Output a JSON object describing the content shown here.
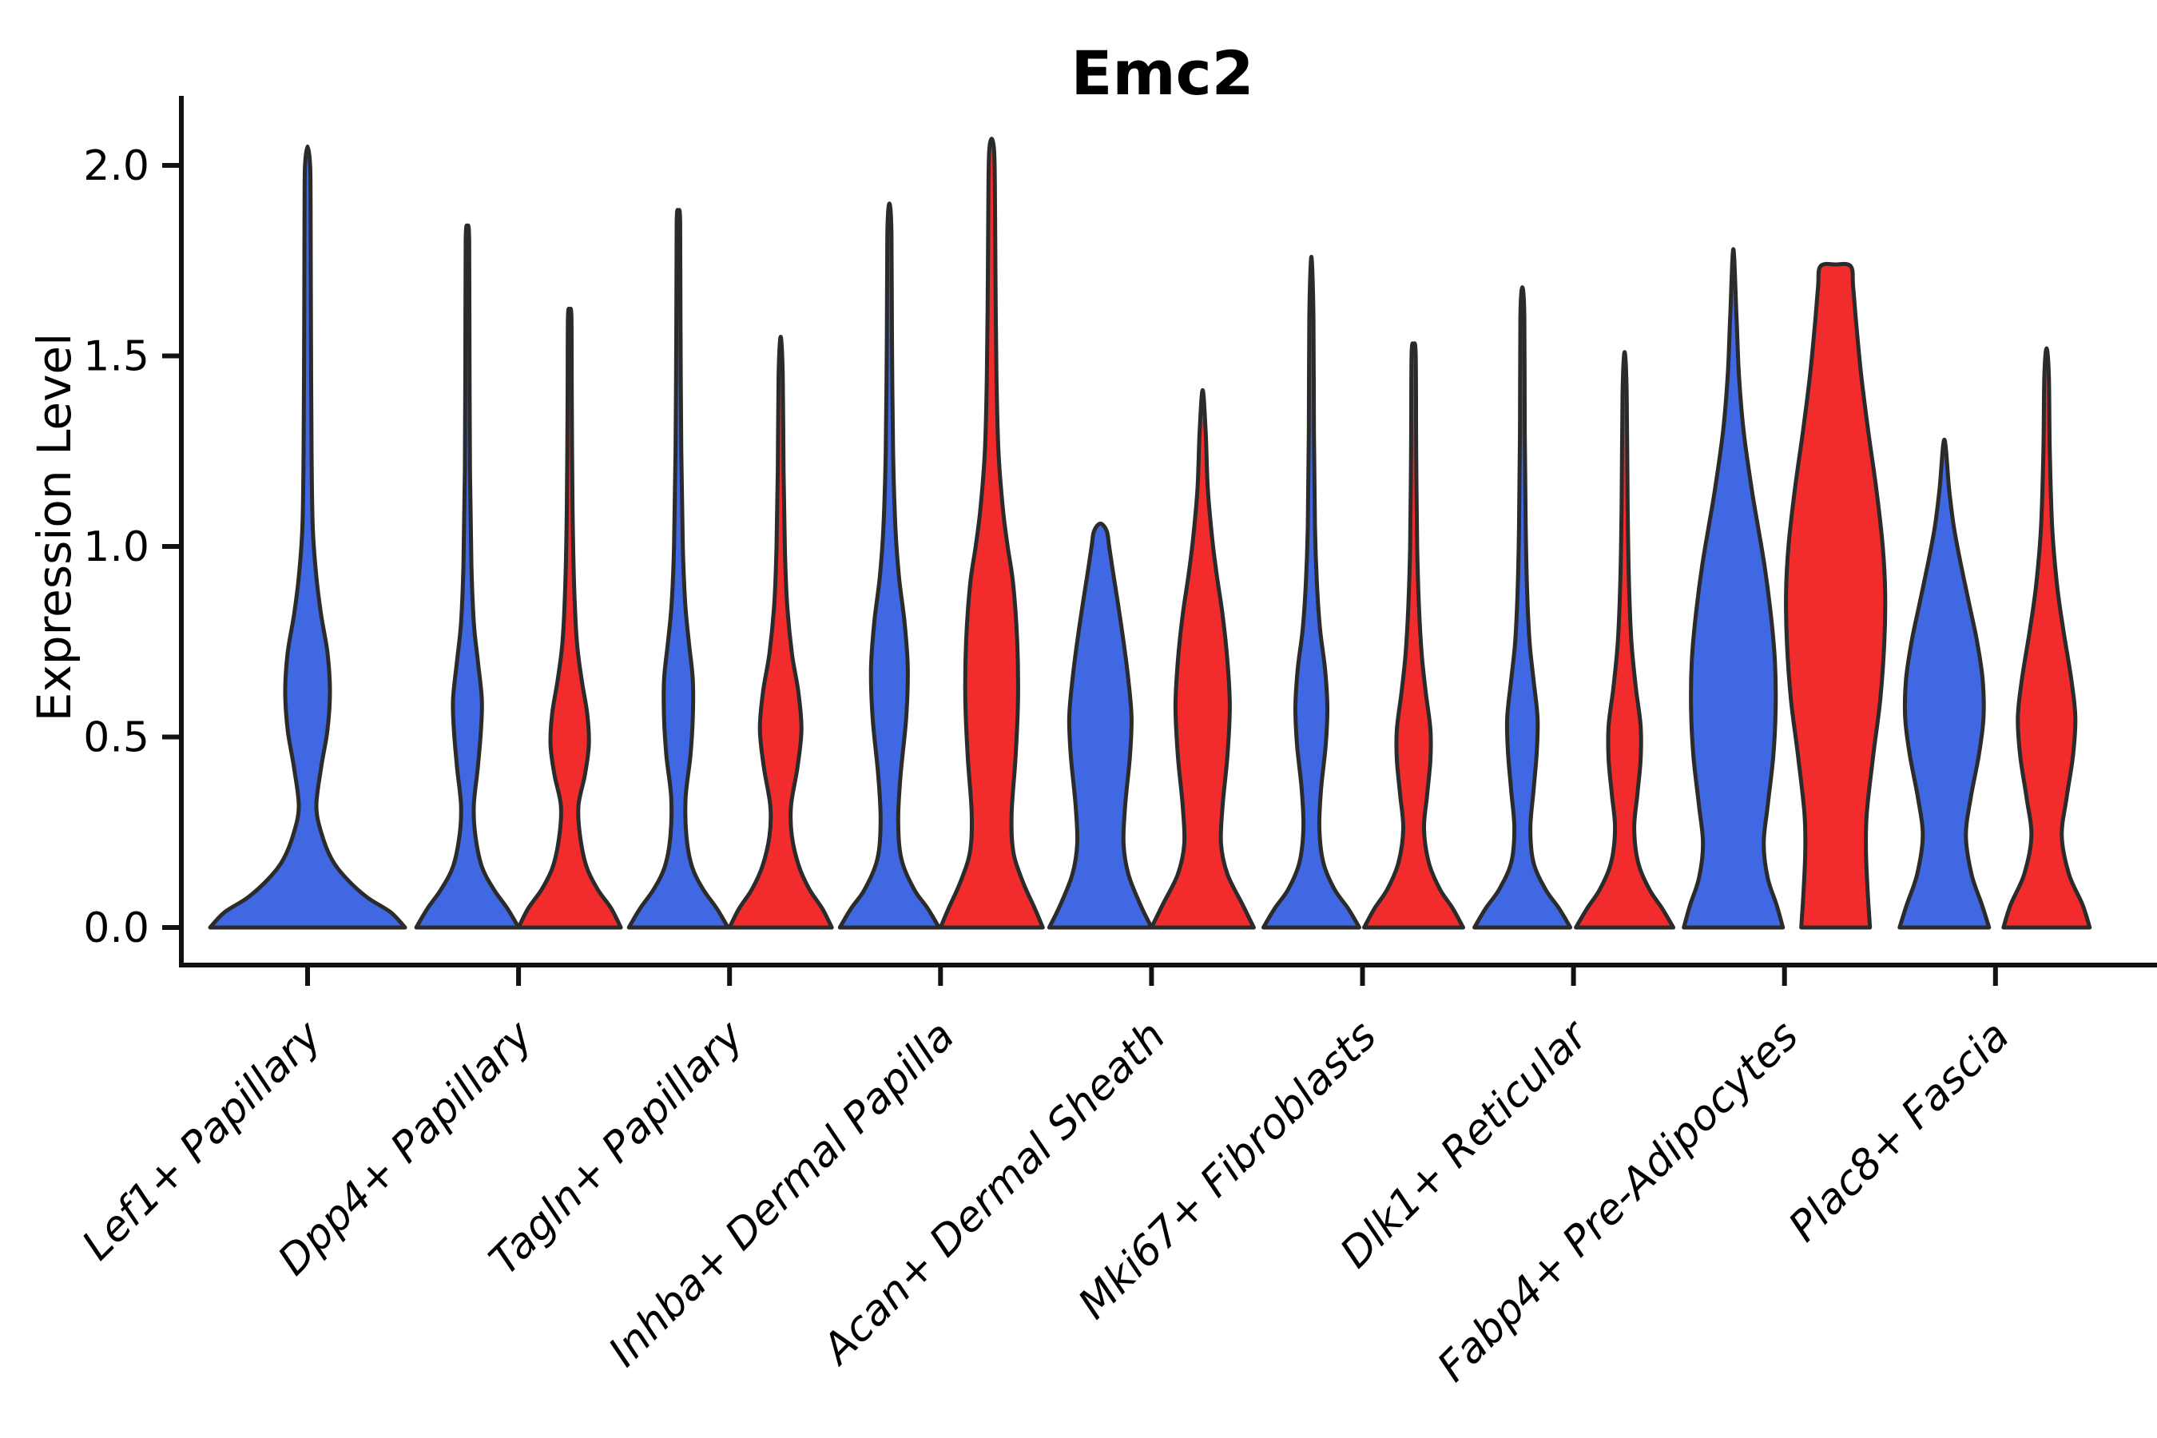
{
  "figure": {
    "title": "Emc2",
    "ylabel": "Expression Level"
  },
  "chart_data": {
    "type": "violin",
    "title": "Emc2",
    "xlabel": "",
    "ylabel": "Expression Level",
    "ylim": [
      0.0,
      2.15
    ],
    "yticks": [
      "0.0",
      "0.5",
      "1.0",
      "1.5",
      "2.0"
    ],
    "ytick_values": [
      0.0,
      0.5,
      1.0,
      1.5,
      2.0
    ],
    "grid": false,
    "legend": "none",
    "xtick_rotation": 45,
    "colors": {
      "blue": "#3F68E2",
      "red": "#F22C2C",
      "outline": "#2B2B2B",
      "axis": "#111111"
    },
    "categories": [
      "Lef1+ Papillary",
      "Dpp4+ Papillary",
      "Tagln+ Papillary",
      "Inhba+ Dermal Papilla",
      "Acan+ Dermal Sheath",
      "Mki67+ Fibroblasts",
      "Dlk1+ Reticular",
      "Fabp4+ Pre-Adipocytes",
      "Plac8+ Fascia"
    ],
    "violins": [
      {
        "category": "Lef1+ Papillary",
        "ci": 0,
        "color": "blue",
        "span": "full",
        "peak": 2.05,
        "profile": [
          [
            0,
            122
          ],
          [
            0.04,
            104
          ],
          [
            0.08,
            74
          ],
          [
            0.13,
            48
          ],
          [
            0.18,
            30
          ],
          [
            0.25,
            17
          ],
          [
            0.32,
            11
          ],
          [
            0.42,
            17
          ],
          [
            0.52,
            25
          ],
          [
            0.62,
            28
          ],
          [
            0.72,
            25
          ],
          [
            0.82,
            17
          ],
          [
            0.92,
            11
          ],
          [
            1.05,
            6.5
          ],
          [
            1.25,
            5
          ],
          [
            1.6,
            4.2
          ],
          [
            1.9,
            3.8
          ],
          [
            2.0,
            3.2
          ],
          [
            2.05,
            0
          ]
        ]
      },
      {
        "category": "Dpp4+ Papillary",
        "ci": 1,
        "color": "blue",
        "span": "half",
        "peak": 1.84,
        "profile": [
          [
            0,
            64
          ],
          [
            0.05,
            50
          ],
          [
            0.1,
            33
          ],
          [
            0.16,
            18
          ],
          [
            0.24,
            10
          ],
          [
            0.32,
            8
          ],
          [
            0.42,
            13
          ],
          [
            0.52,
            17
          ],
          [
            0.6,
            18
          ],
          [
            0.7,
            13
          ],
          [
            0.8,
            8
          ],
          [
            0.95,
            5
          ],
          [
            1.2,
            3.2
          ],
          [
            1.5,
            2.6
          ],
          [
            1.8,
            2.2
          ],
          [
            1.84,
            0
          ]
        ]
      },
      {
        "category": "Dpp4+ Papillary",
        "ci": 1,
        "color": "red",
        "span": "half",
        "peak": 1.62,
        "profile": [
          [
            0,
            64
          ],
          [
            0.05,
            52
          ],
          [
            0.1,
            35
          ],
          [
            0.16,
            21
          ],
          [
            0.24,
            13
          ],
          [
            0.32,
            11
          ],
          [
            0.4,
            19
          ],
          [
            0.48,
            24
          ],
          [
            0.56,
            22
          ],
          [
            0.65,
            15
          ],
          [
            0.75,
            9
          ],
          [
            0.9,
            5.5
          ],
          [
            1.1,
            3.6
          ],
          [
            1.4,
            2.6
          ],
          [
            1.6,
            2.2
          ],
          [
            1.62,
            0
          ]
        ]
      },
      {
        "category": "Tagln+ Papillary",
        "ci": 2,
        "color": "blue",
        "span": "half",
        "peak": 1.88,
        "profile": [
          [
            0,
            62
          ],
          [
            0.05,
            48
          ],
          [
            0.1,
            31
          ],
          [
            0.16,
            17
          ],
          [
            0.24,
            10
          ],
          [
            0.34,
            9
          ],
          [
            0.45,
            15
          ],
          [
            0.55,
            18
          ],
          [
            0.65,
            18
          ],
          [
            0.75,
            13
          ],
          [
            0.85,
            8.5
          ],
          [
            1.0,
            5.5
          ],
          [
            1.25,
            3.6
          ],
          [
            1.6,
            2.6
          ],
          [
            1.85,
            2.2
          ],
          [
            1.88,
            0
          ]
        ]
      },
      {
        "category": "Tagln+ Papillary",
        "ci": 2,
        "color": "red",
        "span": "half",
        "peak": 1.55,
        "profile": [
          [
            0,
            64
          ],
          [
            0.05,
            52
          ],
          [
            0.1,
            36
          ],
          [
            0.16,
            23
          ],
          [
            0.24,
            14
          ],
          [
            0.32,
            13
          ],
          [
            0.42,
            21
          ],
          [
            0.52,
            26
          ],
          [
            0.62,
            22
          ],
          [
            0.72,
            14
          ],
          [
            0.85,
            8
          ],
          [
            1.0,
            5.2
          ],
          [
            1.2,
            3.6
          ],
          [
            1.45,
            2.6
          ],
          [
            1.55,
            0
          ]
        ]
      },
      {
        "category": "Inhba+ Dermal Papilla",
        "ci": 3,
        "color": "blue",
        "span": "half",
        "peak": 1.9,
        "profile": [
          [
            0,
            62
          ],
          [
            0.05,
            48
          ],
          [
            0.1,
            31
          ],
          [
            0.18,
            15
          ],
          [
            0.28,
            11
          ],
          [
            0.4,
            14
          ],
          [
            0.55,
            21
          ],
          [
            0.68,
            23
          ],
          [
            0.8,
            19
          ],
          [
            0.92,
            12
          ],
          [
            1.05,
            7.5
          ],
          [
            1.25,
            4.6
          ],
          [
            1.55,
            3.2
          ],
          [
            1.82,
            2.6
          ],
          [
            1.9,
            0
          ]
        ]
      },
      {
        "category": "Inhba+ Dermal Papilla",
        "ci": 3,
        "color": "red",
        "span": "half",
        "peak": 2.07,
        "profile": [
          [
            0,
            64
          ],
          [
            0.05,
            54
          ],
          [
            0.12,
            39
          ],
          [
            0.2,
            27
          ],
          [
            0.3,
            25
          ],
          [
            0.45,
            30
          ],
          [
            0.6,
            33
          ],
          [
            0.75,
            32
          ],
          [
            0.9,
            27
          ],
          [
            1.0,
            20
          ],
          [
            1.1,
            14
          ],
          [
            1.25,
            8.5
          ],
          [
            1.45,
            6
          ],
          [
            1.7,
            4.8
          ],
          [
            1.95,
            4
          ],
          [
            2.04,
            3
          ],
          [
            2.07,
            0
          ]
        ]
      },
      {
        "category": "Acan+ Dermal Sheath",
        "ci": 4,
        "color": "blue",
        "span": "half",
        "peak": 1.06,
        "profile": [
          [
            0,
            64
          ],
          [
            0.06,
            50
          ],
          [
            0.14,
            35
          ],
          [
            0.22,
            29
          ],
          [
            0.32,
            31
          ],
          [
            0.45,
            37
          ],
          [
            0.55,
            39
          ],
          [
            0.65,
            35
          ],
          [
            0.75,
            29
          ],
          [
            0.85,
            22
          ],
          [
            0.93,
            16
          ],
          [
            1.0,
            11
          ],
          [
            1.04,
            8
          ],
          [
            1.06,
            0
          ]
        ]
      },
      {
        "category": "Acan+ Dermal Sheath",
        "ci": 4,
        "color": "red",
        "span": "half",
        "peak": 1.41,
        "profile": [
          [
            0,
            64
          ],
          [
            0.06,
            50
          ],
          [
            0.14,
            31
          ],
          [
            0.22,
            23
          ],
          [
            0.32,
            25
          ],
          [
            0.45,
            31
          ],
          [
            0.58,
            34
          ],
          [
            0.7,
            31
          ],
          [
            0.82,
            25
          ],
          [
            0.92,
            18
          ],
          [
            1.02,
            12
          ],
          [
            1.15,
            6.5
          ],
          [
            1.3,
            3.8
          ],
          [
            1.41,
            0
          ]
        ]
      },
      {
        "category": "Mki67+ Fibroblasts",
        "ci": 5,
        "color": "blue",
        "span": "half",
        "peak": 1.76,
        "profile": [
          [
            0,
            60
          ],
          [
            0.05,
            46
          ],
          [
            0.1,
            29
          ],
          [
            0.17,
            15
          ],
          [
            0.26,
            10
          ],
          [
            0.36,
            12
          ],
          [
            0.48,
            18
          ],
          [
            0.58,
            20
          ],
          [
            0.68,
            17
          ],
          [
            0.78,
            11
          ],
          [
            0.9,
            7
          ],
          [
            1.05,
            4.5
          ],
          [
            1.3,
            3.2
          ],
          [
            1.6,
            2.6
          ],
          [
            1.76,
            0
          ]
        ]
      },
      {
        "category": "Mki67+ Fibroblasts",
        "ci": 5,
        "color": "red",
        "span": "half",
        "peak": 1.53,
        "profile": [
          [
            0,
            62
          ],
          [
            0.05,
            49
          ],
          [
            0.1,
            33
          ],
          [
            0.17,
            19
          ],
          [
            0.26,
            13
          ],
          [
            0.35,
            17
          ],
          [
            0.44,
            21
          ],
          [
            0.52,
            21
          ],
          [
            0.62,
            15
          ],
          [
            0.72,
            10
          ],
          [
            0.85,
            6.5
          ],
          [
            1.0,
            4.4
          ],
          [
            1.25,
            3.2
          ],
          [
            1.5,
            2.6
          ],
          [
            1.53,
            0
          ]
        ]
      },
      {
        "category": "Dlk1+ Reticular",
        "ci": 6,
        "color": "blue",
        "span": "half",
        "peak": 1.68,
        "profile": [
          [
            0,
            60
          ],
          [
            0.05,
            46
          ],
          [
            0.1,
            29
          ],
          [
            0.17,
            14
          ],
          [
            0.26,
            10
          ],
          [
            0.36,
            14
          ],
          [
            0.46,
            18
          ],
          [
            0.55,
            19
          ],
          [
            0.65,
            14
          ],
          [
            0.75,
            9
          ],
          [
            0.88,
            6
          ],
          [
            1.05,
            4.2
          ],
          [
            1.3,
            3
          ],
          [
            1.6,
            2.5
          ],
          [
            1.68,
            0
          ]
        ]
      },
      {
        "category": "Dlk1+ Reticular",
        "ci": 6,
        "color": "red",
        "span": "half",
        "peak": 1.51,
        "profile": [
          [
            0,
            61
          ],
          [
            0.05,
            47
          ],
          [
            0.1,
            31
          ],
          [
            0.17,
            17
          ],
          [
            0.26,
            12
          ],
          [
            0.35,
            16
          ],
          [
            0.44,
            20
          ],
          [
            0.53,
            20
          ],
          [
            0.63,
            14
          ],
          [
            0.75,
            8.5
          ],
          [
            0.9,
            5.5
          ],
          [
            1.1,
            3.8
          ],
          [
            1.4,
            2.6
          ],
          [
            1.51,
            0
          ]
        ]
      },
      {
        "category": "Fabp4+ Pre-Adipocytes",
        "ci": 7,
        "color": "blue",
        "span": "half",
        "peak": 1.78,
        "profile": [
          [
            0,
            62
          ],
          [
            0.06,
            54
          ],
          [
            0.13,
            43
          ],
          [
            0.22,
            38
          ],
          [
            0.32,
            43
          ],
          [
            0.45,
            50
          ],
          [
            0.58,
            53
          ],
          [
            0.7,
            52
          ],
          [
            0.82,
            47
          ],
          [
            0.95,
            39
          ],
          [
            1.05,
            31
          ],
          [
            1.15,
            23
          ],
          [
            1.3,
            13
          ],
          [
            1.45,
            7
          ],
          [
            1.6,
            4
          ],
          [
            1.78,
            0
          ]
        ]
      },
      {
        "category": "Fabp4+ Pre-Adipocytes",
        "ci": 7,
        "color": "red",
        "span": "half",
        "peak": 1.74,
        "profile": [
          [
            0,
            43
          ],
          [
            0.1,
            40
          ],
          [
            0.2,
            38
          ],
          [
            0.3,
            39
          ],
          [
            0.45,
            47
          ],
          [
            0.6,
            56
          ],
          [
            0.75,
            61
          ],
          [
            0.88,
            62
          ],
          [
            1.0,
            59
          ],
          [
            1.15,
            51
          ],
          [
            1.3,
            41
          ],
          [
            1.45,
            32
          ],
          [
            1.58,
            26
          ],
          [
            1.68,
            22
          ],
          [
            1.735,
            19
          ],
          [
            1.74,
            0
          ]
        ]
      },
      {
        "category": "Plac8+ Fascia",
        "ci": 8,
        "color": "blue",
        "span": "half",
        "peak": 1.28,
        "profile": [
          [
            0,
            56
          ],
          [
            0.06,
            47
          ],
          [
            0.14,
            34
          ],
          [
            0.24,
            27
          ],
          [
            0.34,
            33
          ],
          [
            0.45,
            43
          ],
          [
            0.55,
            49
          ],
          [
            0.65,
            48
          ],
          [
            0.75,
            41
          ],
          [
            0.85,
            31
          ],
          [
            0.95,
            21
          ],
          [
            1.05,
            12
          ],
          [
            1.15,
            6
          ],
          [
            1.28,
            0
          ]
        ]
      },
      {
        "category": "Plac8+ Fascia",
        "ci": 8,
        "color": "red",
        "span": "half",
        "peak": 1.52,
        "profile": [
          [
            0,
            54
          ],
          [
            0.06,
            45
          ],
          [
            0.14,
            28
          ],
          [
            0.24,
            19
          ],
          [
            0.34,
            25
          ],
          [
            0.45,
            33
          ],
          [
            0.55,
            36
          ],
          [
            0.65,
            31
          ],
          [
            0.78,
            21
          ],
          [
            0.9,
            13
          ],
          [
            1.05,
            7
          ],
          [
            1.25,
            4
          ],
          [
            1.45,
            2.8
          ],
          [
            1.52,
            0
          ]
        ]
      }
    ]
  }
}
